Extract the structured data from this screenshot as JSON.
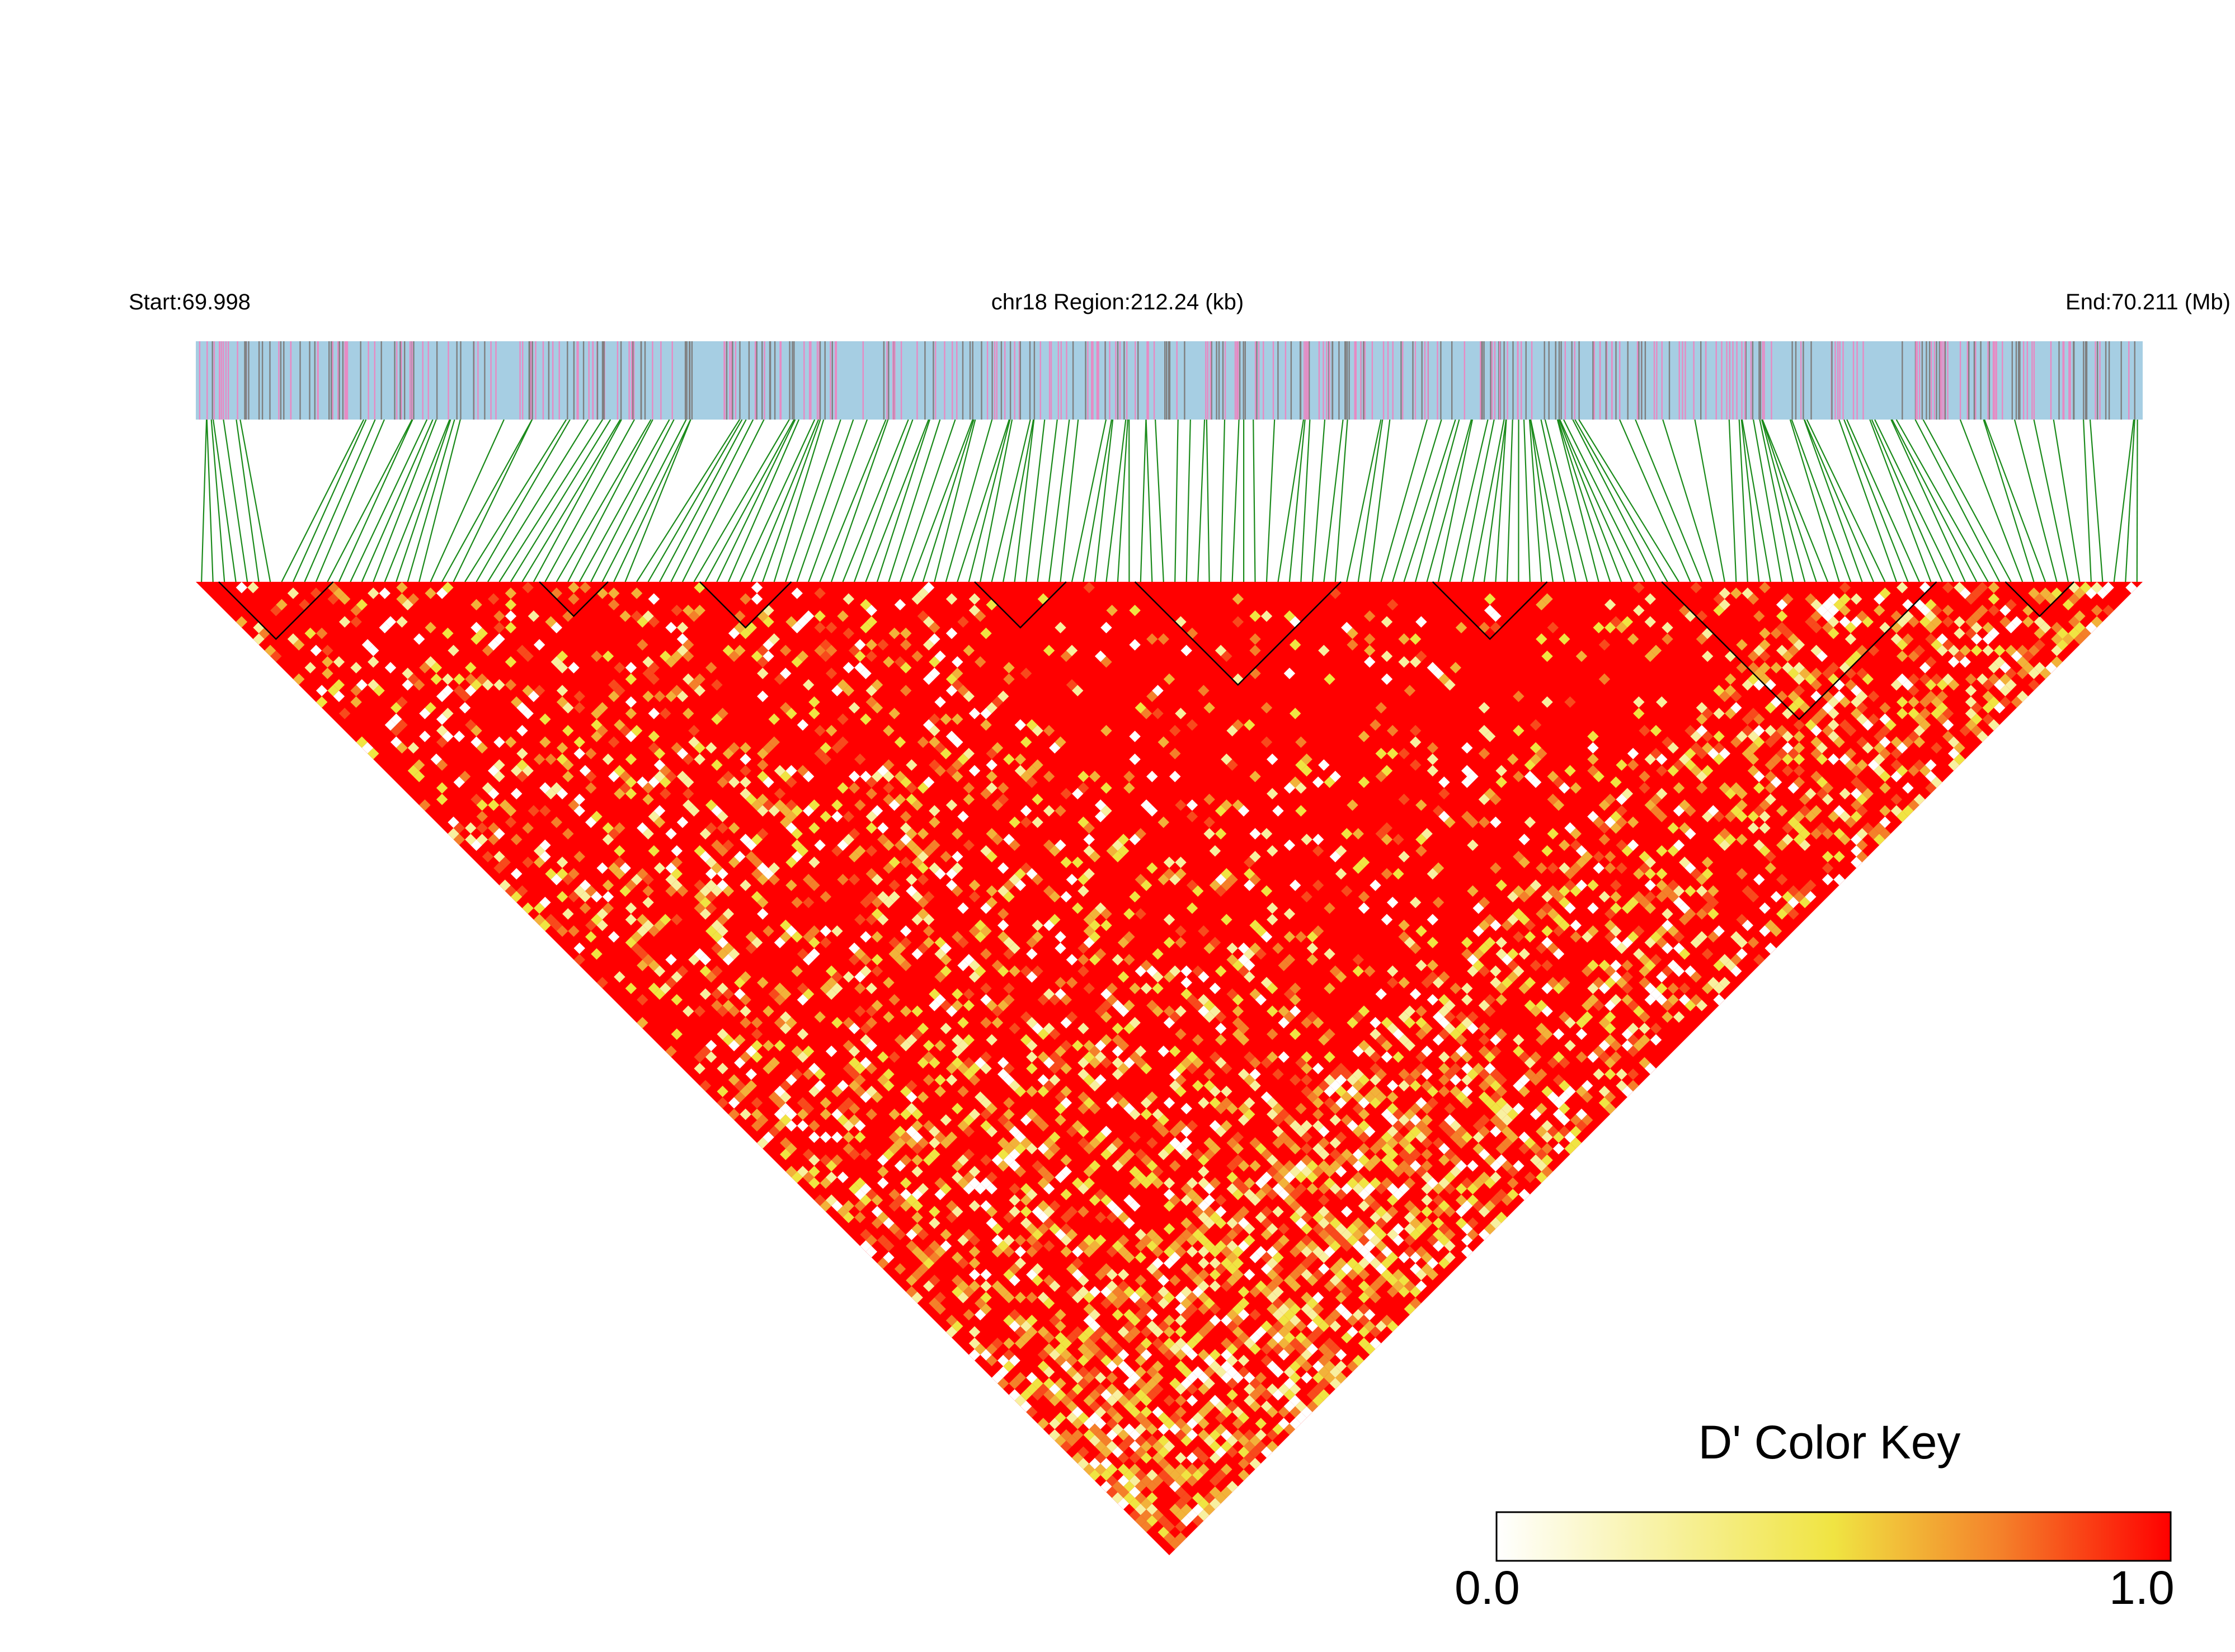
{
  "header": {
    "start": "Start:69.998",
    "region": "chr18 Region:212.24 (kb)",
    "end": "End:70.211 (Mb)"
  },
  "legend": {
    "title": "D' Color Key",
    "min_label": "0.0",
    "max_label": "1.0"
  },
  "colors": {
    "gene_track_bg": "#a6cee3",
    "snp_pink": "#e78ac3",
    "snp_gray": "#7f7f7f",
    "connector": "#1a8a1a",
    "high": "#ff0000",
    "mid": "#f0e442",
    "low": "#ffffff"
  },
  "chart_data": {
    "type": "heatmap",
    "title": "chr18 Region:212.24 (kb)",
    "chromosome": "chr18",
    "region_start_mb": 69.998,
    "region_end_mb": 70.211,
    "region_length_kb": 212.24,
    "metric": "D'",
    "value_range": [
      0.0,
      1.0
    ],
    "colormap": [
      "#ffffff",
      "#f0e442",
      "#ff0000"
    ],
    "layout": "LD triangle (inverted)",
    "snp_count_approx": 600,
    "dominant_value": 1.0,
    "haplotype_blocks_marked": true,
    "legend_position": "bottom-right"
  }
}
